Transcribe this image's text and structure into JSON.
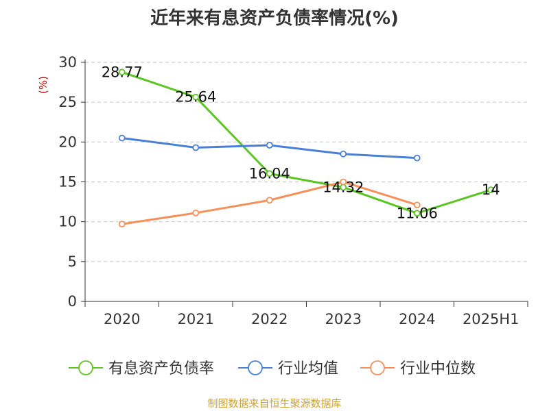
{
  "chart_data": {
    "type": "line",
    "title": "近年来有息资产负债率情况(%)",
    "ylabel": "(%)",
    "categories": [
      "2020",
      "2021",
      "2022",
      "2023",
      "2024",
      "2025H1"
    ],
    "ylim": [
      0,
      30
    ],
    "yticks": [
      0,
      5,
      10,
      15,
      20,
      25,
      30
    ],
    "grid": true,
    "legend_position": "bottom",
    "series": [
      {
        "name": "有息资产负债率",
        "color": "#5cc524",
        "values": [
          28.77,
          25.64,
          16.04,
          14.32,
          11.06,
          14
        ],
        "labels": [
          "28.77",
          "25.64",
          "16.04",
          "14.32",
          "11.06",
          "14"
        ]
      },
      {
        "name": "行业均值",
        "color": "#4a7fd6",
        "values": [
          20.5,
          19.3,
          19.6,
          18.5,
          18.0,
          null
        ],
        "labels": null
      },
      {
        "name": "行业中位数",
        "color": "#f5905a",
        "values": [
          9.7,
          11.1,
          12.7,
          15.0,
          12.1,
          null
        ],
        "labels": null
      }
    ]
  },
  "footer": {
    "source": "制图数据来自恒生聚源数据库"
  },
  "colors": {
    "axis": "#333333",
    "grid": "#cccccc",
    "ylabel": "#cc0000",
    "footer": "#c9a13a"
  }
}
